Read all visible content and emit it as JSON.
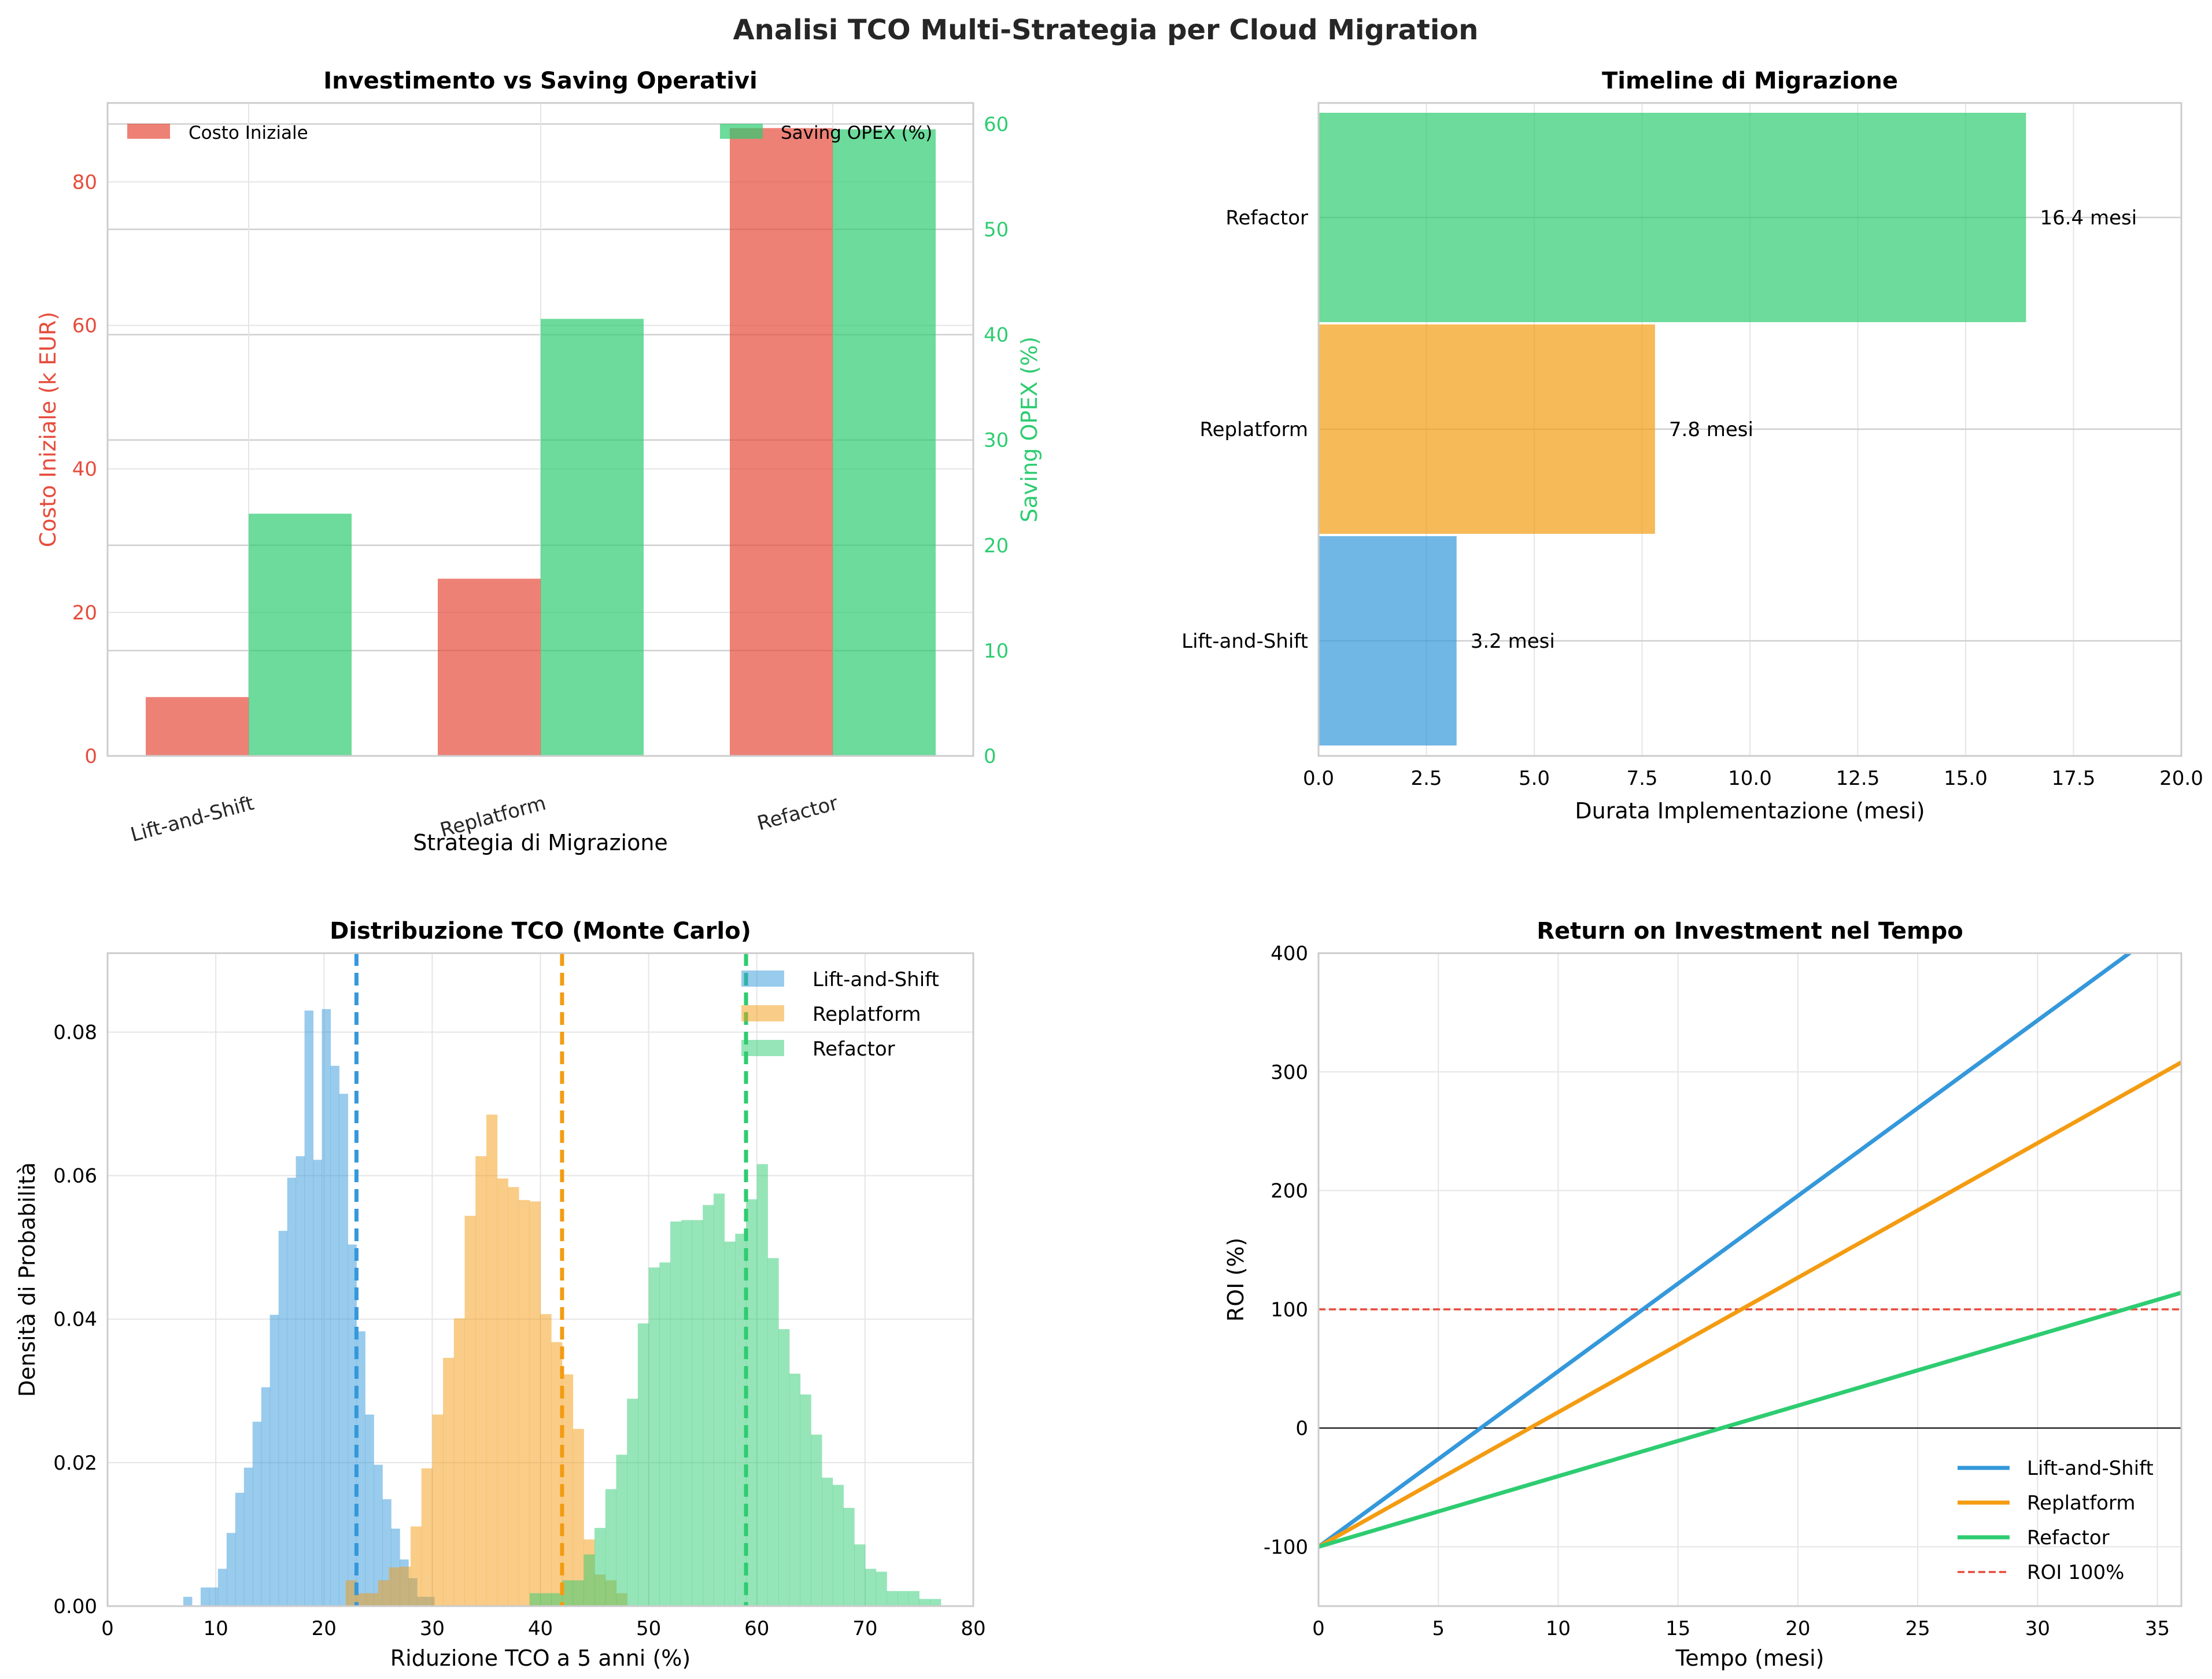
{
  "figure": {
    "suptitle": "Analisi TCO Multi-Strategia per Cloud Migration"
  },
  "colors": {
    "red": "#e74c3c",
    "green": "#2ecc71",
    "blue": "#3498db",
    "orange": "#f39c12",
    "grid": "#e5e5e5",
    "axis": "#cccccc"
  },
  "chart_data": [
    {
      "type": "bar",
      "title": "Investimento vs Saving Operativi",
      "xlabel": "Strategia di Migrazione",
      "ylabel": "Costo Iniziale (k EUR)",
      "ylabel_right": "Saving OPEX (%)",
      "categories": [
        "Lift-and-Shift",
        "Replatform",
        "Refactor"
      ],
      "series": [
        {
          "name": "Costo Iniziale",
          "axis": "left",
          "color": "#e74c3c",
          "values": [
            8.2,
            24.7,
            87.5
          ]
        },
        {
          "name": "Saving OPEX (%)",
          "axis": "right",
          "color": "#2ecc71",
          "values": [
            23,
            41.5,
            59.5
          ]
        }
      ],
      "ylim": [
        0,
        91
      ],
      "ylim_right": [
        0,
        62
      ],
      "yticks": [
        "0",
        "20",
        "40",
        "60",
        "80"
      ],
      "yticks_right": [
        "0",
        "10",
        "20",
        "30",
        "40",
        "50",
        "60"
      ],
      "grid": true,
      "legend": [
        "upper-left",
        "upper-right"
      ]
    },
    {
      "type": "bar",
      "orientation": "horizontal",
      "title": "Timeline di Migrazione",
      "xlabel": "Durata Implementazione (mesi)",
      "categories": [
        "Lift-and-Shift",
        "Replatform",
        "Refactor"
      ],
      "values": [
        3.2,
        7.8,
        16.4
      ],
      "colors": [
        "#3498db",
        "#f39c12",
        "#2ecc71"
      ],
      "value_labels": [
        "3.2 mesi",
        "7.8 mesi",
        "16.4 mesi"
      ],
      "xlim": [
        0,
        20
      ],
      "xticks": [
        "0.0",
        "2.5",
        "5.0",
        "7.5",
        "10.0",
        "12.5",
        "15.0",
        "17.5",
        "20.0"
      ],
      "grid": true
    },
    {
      "type": "histogram",
      "title": "Distribuzione TCO (Monte Carlo)",
      "xlabel": "Riduzione TCO a 5 anni (%)",
      "ylabel": "Densità di Probabilità",
      "xlim": [
        0,
        80
      ],
      "ylim": [
        0,
        0.091
      ],
      "xticks": [
        "0",
        "10",
        "20",
        "30",
        "40",
        "50",
        "60",
        "70",
        "80"
      ],
      "yticks": [
        "0.00",
        "0.02",
        "0.04",
        "0.06",
        "0.08"
      ],
      "grid": true,
      "legend": "upper-right",
      "series": [
        {
          "name": "Lift-and-Shift",
          "color": "#3498db",
          "mean": 23,
          "bin_start": 7,
          "bin_width": 0.8,
          "values": [
            0.0013,
            0,
            0.0026,
            0.0026,
            0.0052,
            0.0102,
            0.0158,
            0.0193,
            0.0257,
            0.0305,
            0.0406,
            0.0523,
            0.0597,
            0.0627,
            0.083,
            0.0622,
            0.0832,
            0.0753,
            0.0714,
            0.0504,
            0.0383,
            0.0267,
            0.0197,
            0.0149,
            0.0108,
            0.0065,
            0.0039,
            0.0013,
            0.0013
          ]
        },
        {
          "name": "Replatform",
          "color": "#f39c12",
          "mean": 42,
          "bin_start": 22,
          "bin_width": 1.0,
          "values": [
            0.0036,
            0.0018,
            0.0018,
            0.0036,
            0.0054,
            0.0055,
            0.0111,
            0.0192,
            0.0267,
            0.0346,
            0.0401,
            0.0544,
            0.0627,
            0.0685,
            0.0596,
            0.0584,
            0.0566,
            0.0564,
            0.0407,
            0.0368,
            0.0323,
            0.0247,
            0.0093,
            0.0044,
            0.0036,
            0.0018
          ]
        },
        {
          "name": "Refactor",
          "color": "#2ecc71",
          "mean": 59,
          "bin_start": 39,
          "bin_width": 1.0,
          "values": [
            0.0018,
            0.0018,
            0.0018,
            0.0036,
            0.0036,
            0.0072,
            0.0109,
            0.0163,
            0.0211,
            0.0289,
            0.0394,
            0.0472,
            0.0479,
            0.0536,
            0.0538,
            0.0538,
            0.0559,
            0.0575,
            0.0508,
            0.0519,
            0.0567,
            0.0616,
            0.0485,
            0.0386,
            0.0324,
            0.0295,
            0.0239,
            0.0179,
            0.0169,
            0.0137,
            0.0086,
            0.0052,
            0.0048,
            0.0021,
            0.0021,
            0.0021,
            0.001,
            0.001
          ]
        }
      ]
    },
    {
      "type": "line",
      "title": "Return on Investment nel Tempo",
      "xlabel": "Tempo (mesi)",
      "ylabel": "ROI (%)",
      "xlim": [
        0,
        36
      ],
      "ylim": [
        -150,
        400
      ],
      "xticks": [
        "0",
        "5",
        "10",
        "15",
        "20",
        "25",
        "30",
        "35"
      ],
      "yticks": [
        "-100",
        "0",
        "100",
        "200",
        "300",
        "400"
      ],
      "grid": true,
      "legend": "lower-right",
      "series": [
        {
          "name": "Lift-and-Shift",
          "color": "#3498db",
          "x": [
            0,
            36
          ],
          "y": [
            -100,
            432
          ]
        },
        {
          "name": "Replatform",
          "color": "#f39c12",
          "x": [
            0,
            36
          ],
          "y": [
            -100,
            308
          ]
        },
        {
          "name": "Refactor",
          "color": "#2ecc71",
          "x": [
            0,
            36
          ],
          "y": [
            -100,
            114
          ]
        }
      ],
      "hlines": [
        {
          "name": "ROI 100%",
          "y": 100,
          "color": "#e74c3c",
          "style": "dashed"
        }
      ],
      "zero_line": true
    }
  ]
}
